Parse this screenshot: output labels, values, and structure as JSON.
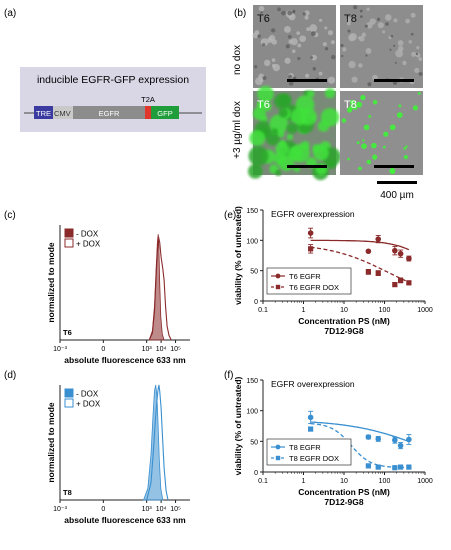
{
  "panel_labels": {
    "a": "(a)",
    "b": "(b)",
    "c": "(c)",
    "d": "(d)",
    "e": "(e)",
    "f": "(f)"
  },
  "construct": {
    "title": "inducible EGFR-GFP expression",
    "segments": [
      "TRE",
      "CMV",
      "EGFR",
      "T2A",
      "GFP"
    ],
    "colors": {
      "TRE": "#3a3aa0",
      "EGFR": "#8c8c8c",
      "T2A": "#e0362c",
      "GFP": "#1f9d3a",
      "box": "#d9d7e6"
    }
  },
  "microscopy": {
    "col_labels": [
      "T6",
      "T8"
    ],
    "row_labels": [
      "no dox",
      "+3 µg/ml dox"
    ],
    "scale_label": "400 µm"
  },
  "chart_data": [
    {
      "id": "c",
      "type": "area",
      "title": "",
      "xlabel": "absolute fluorescence 633 nm",
      "ylabel": "normalized to mode",
      "xscale": "log",
      "xlim": [
        0.001,
        1000000
      ],
      "x_tick_labels": [
        "10⁻³",
        "0",
        "10³",
        "10⁴",
        "10⁵"
      ],
      "tag": "T6",
      "legend_position": "top-left",
      "series": [
        {
          "name": "- DOX",
          "style": "filled",
          "color": "#8b2a2a",
          "x": [
            1500,
            2500,
            3500,
            4500,
            5500,
            6300,
            7000,
            8000,
            9500,
            12000,
            16000
          ],
          "y": [
            0,
            8,
            30,
            62,
            85,
            92,
            80,
            50,
            20,
            5,
            0
          ]
        },
        {
          "name": "+ DOX",
          "style": "outline",
          "color": "#8b2a2a",
          "x": [
            1500,
            2500,
            3500,
            4500,
            5500,
            6500,
            8000,
            10000,
            13000,
            16000,
            20000,
            26000,
            35000,
            50000
          ],
          "y": [
            0,
            6,
            25,
            55,
            78,
            90,
            85,
            72,
            62,
            52,
            30,
            12,
            4,
            0
          ]
        }
      ]
    },
    {
      "id": "d",
      "type": "area",
      "title": "",
      "xlabel": "absolute fluorescence 633 nm",
      "ylabel": "normalized to mode",
      "xscale": "log",
      "xlim": [
        0.001,
        1000000
      ],
      "x_tick_labels": [
        "10⁻³",
        "0",
        "10³",
        "10⁴",
        "10⁵"
      ],
      "tag": "T8",
      "legend_position": "top-left",
      "series": [
        {
          "name": "- DOX",
          "style": "filled",
          "color": "#3a8fd0",
          "x": [
            600,
            1200,
            2000,
            2800,
            3500,
            4200,
            5000,
            6000,
            7500,
            9500,
            13000
          ],
          "y": [
            0,
            10,
            40,
            75,
            95,
            100,
            92,
            70,
            35,
            10,
            0
          ]
        },
        {
          "name": "+ DOX",
          "style": "outline",
          "color": "#3a8fd0",
          "x": [
            1000,
            2000,
            3000,
            4000,
            5000,
            6000,
            7000,
            8000,
            10000,
            12500,
            16000,
            22000,
            30000
          ],
          "y": [
            0,
            15,
            45,
            70,
            85,
            95,
            100,
            95,
            80,
            55,
            28,
            8,
            0
          ]
        }
      ]
    },
    {
      "id": "e",
      "type": "scatter",
      "title": "EGFR overexpression",
      "xlabel": "Concentration PS (nM)",
      "xlabel2": "7D12-9G8",
      "ylabel": "viability (% of untreated)",
      "xscale": "log",
      "xlim": [
        0.1,
        1000
      ],
      "ylim": [
        0,
        150
      ],
      "x_ticks": [
        0.1,
        1,
        10,
        100,
        1000
      ],
      "x_tick_labels": [
        "0.1",
        "1",
        "10",
        "100",
        "1000"
      ],
      "y_ticks": [
        0,
        50,
        100,
        150
      ],
      "legend_position": "bottom-left",
      "series": [
        {
          "name": "T6 EGFR",
          "marker": "circle",
          "line": "solid",
          "color": "#8b2a2a",
          "x": [
            1.5,
            40,
            70,
            180,
            250,
            400
          ],
          "y": [
            112,
            82,
            102,
            83,
            78,
            70
          ],
          "err": [
            8,
            0,
            6,
            7,
            6,
            4
          ],
          "fit": {
            "top": 100,
            "bottom": 0,
            "ic50": 2200,
            "hill": 1
          }
        },
        {
          "name": "T6 EGFR DOX",
          "marker": "square",
          "line": "dashed",
          "color": "#8b2a2a",
          "x": [
            1.5,
            40,
            70,
            180,
            250,
            400
          ],
          "y": [
            86,
            48,
            46,
            27,
            34,
            30
          ],
          "err": [
            7,
            4,
            4,
            3,
            4,
            3
          ],
          "fit": {
            "top": 95,
            "bottom": 0,
            "ic50": 120,
            "hill": 0.6
          }
        }
      ]
    },
    {
      "id": "f",
      "type": "scatter",
      "title": "EGFR overexpression",
      "xlabel": "Concentration PS (nM)",
      "xlabel2": "7D12-9G8",
      "ylabel": "viability (% of untreated)",
      "xscale": "log",
      "xlim": [
        0.1,
        1000
      ],
      "ylim": [
        0,
        150
      ],
      "x_ticks": [
        0.1,
        1,
        10,
        100,
        1000
      ],
      "x_tick_labels": [
        "0.1",
        "1",
        "10",
        "100",
        "1000"
      ],
      "y_ticks": [
        0,
        50,
        100,
        150
      ],
      "legend_position": "bottom-left",
      "series": [
        {
          "name": "T8 EGFR",
          "marker": "circle",
          "line": "solid",
          "color": "#3a8fd0",
          "x": [
            1.5,
            40,
            70,
            180,
            250,
            400
          ],
          "y": [
            89,
            57,
            54,
            52,
            43,
            53
          ],
          "err": [
            10,
            3,
            4,
            5,
            5,
            8
          ],
          "fit": {
            "top": 85,
            "bottom": 0,
            "ic50": 800,
            "hill": 0.5
          }
        },
        {
          "name": "T8 EGFR DOX",
          "marker": "square",
          "line": "dashed",
          "color": "#3a8fd0",
          "x": [
            1.5,
            40,
            70,
            180,
            250,
            400
          ],
          "y": [
            70,
            10,
            8,
            7,
            8,
            8
          ],
          "err": [
            3,
            1,
            1,
            1,
            1,
            1
          ],
          "fit": {
            "top": 80,
            "bottom": 7,
            "ic50": 15,
            "hill": 1.8
          }
        }
      ]
    }
  ]
}
